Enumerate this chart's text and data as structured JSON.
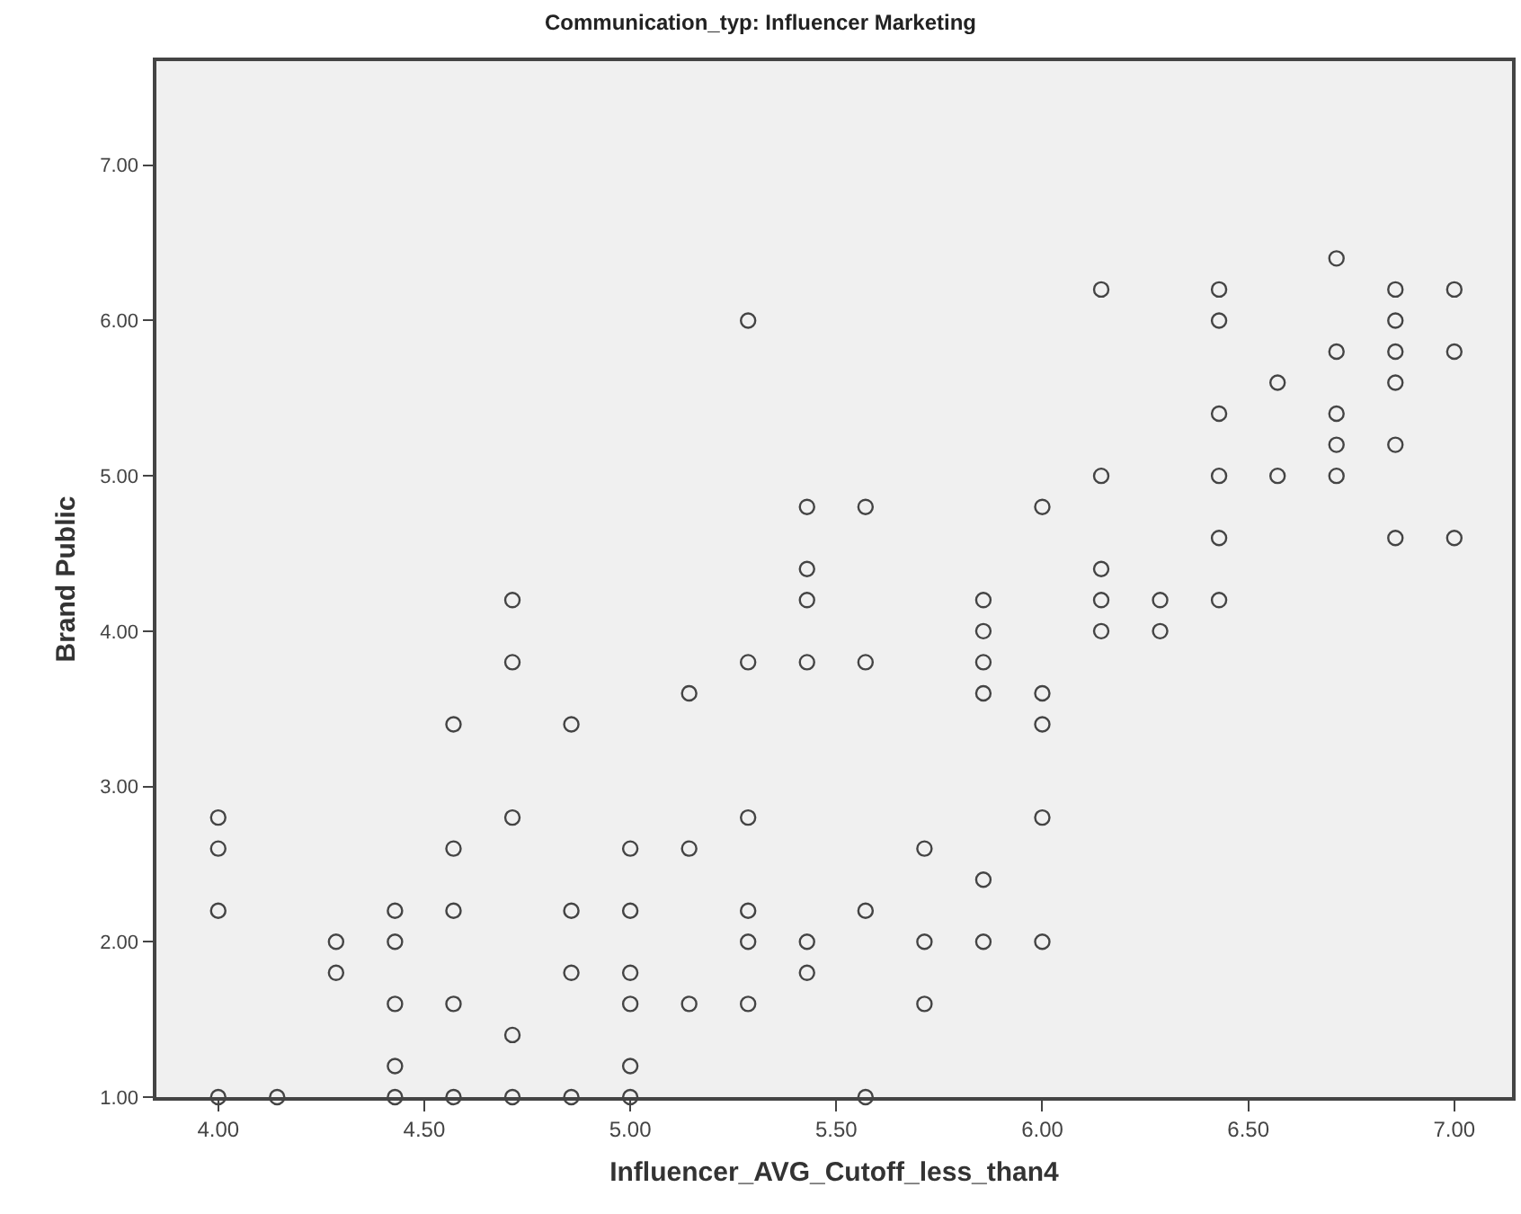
{
  "chart_data": {
    "type": "scatter",
    "title": "Communication_typ: Influencer Marketing",
    "xlabel": "Influencer_AVG_Cutoff_less_than4",
    "ylabel": "Brand Public",
    "xlim": [
      3.85,
      7.14
    ],
    "xticks": [
      {
        "value": 4,
        "label": "4.00"
      },
      {
        "value": 4.5,
        "label": "4.50"
      },
      {
        "value": 5,
        "label": "5.00"
      },
      {
        "value": 5.5,
        "label": "5.50"
      },
      {
        "value": 6,
        "label": "6.00"
      },
      {
        "value": 6.5,
        "label": "6.50"
      },
      {
        "value": 7,
        "label": "7.00"
      }
    ],
    "ylim": [
      1,
      7.67
    ],
    "yticks": [
      {
        "value": 1,
        "label": "1.00"
      },
      {
        "value": 2,
        "label": "2.00"
      },
      {
        "value": 3,
        "label": "3.00"
      },
      {
        "value": 4,
        "label": "4.00"
      },
      {
        "value": 5,
        "label": "5.00"
      },
      {
        "value": 6,
        "label": "6.00"
      },
      {
        "value": 7,
        "label": "7.00"
      }
    ],
    "grid": false,
    "marker": "circle",
    "series": [
      {
        "color": "#444444",
        "x": [
          4,
          4,
          4,
          4,
          4.143,
          4.286,
          4.286,
          4.429,
          4.429,
          4.429,
          4.429,
          4.429,
          4.571,
          4.571,
          4.571,
          4.571,
          4.571,
          4.714,
          4.714,
          4.714,
          4.714,
          4.714,
          4.857,
          4.857,
          4.857,
          4.857,
          5,
          5,
          5,
          5,
          5,
          5,
          5.143,
          5.143,
          5.143,
          5.286,
          5.286,
          5.286,
          5.286,
          5.286,
          5.286,
          5.429,
          5.429,
          5.429,
          5.429,
          5.429,
          5.429,
          5.571,
          5.571,
          5.571,
          5.571,
          5.714,
          5.714,
          5.714,
          5.857,
          5.857,
          5.857,
          5.857,
          5.857,
          5.857,
          6,
          6,
          6,
          6,
          6,
          6.143,
          6.143,
          6.143,
          6.143,
          6.143,
          6.286,
          6.286,
          6.429,
          6.429,
          6.429,
          6.429,
          6.429,
          6.429,
          6.571,
          6.571,
          6.714,
          6.714,
          6.714,
          6.714,
          6.714,
          6.857,
          6.857,
          6.857,
          6.857,
          6.857,
          6.857,
          7,
          7,
          7
        ],
        "values": [
          2.8,
          2.6,
          2.2,
          1.0,
          1.0,
          2.0,
          1.8,
          2.2,
          2.0,
          1.6,
          1.2,
          1.0,
          3.4,
          2.6,
          2.2,
          1.6,
          1.0,
          4.2,
          3.8,
          2.8,
          1.4,
          1.0,
          3.4,
          2.2,
          1.8,
          1.0,
          2.6,
          2.2,
          1.8,
          1.6,
          1.2,
          1.0,
          3.6,
          2.6,
          1.6,
          6.0,
          3.8,
          2.8,
          2.2,
          2.0,
          1.6,
          4.8,
          4.4,
          4.2,
          3.8,
          2.0,
          1.8,
          4.8,
          3.8,
          2.2,
          1.0,
          2.6,
          2.0,
          1.6,
          4.2,
          4.0,
          3.8,
          3.6,
          2.4,
          2.0,
          4.8,
          3.6,
          3.4,
          2.8,
          2.0,
          6.2,
          5.0,
          4.4,
          4.2,
          4.0,
          4.2,
          4.0,
          6.2,
          6.0,
          5.4,
          5.0,
          4.6,
          4.2,
          5.6,
          5.0,
          6.4,
          5.8,
          5.4,
          5.2,
          5.0,
          6.2,
          6.0,
          5.8,
          5.6,
          5.2,
          4.6,
          6.2,
          5.8,
          4.6
        ]
      }
    ]
  }
}
